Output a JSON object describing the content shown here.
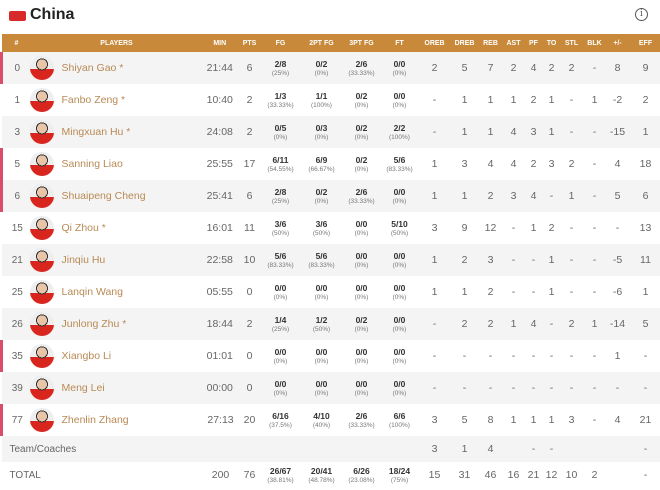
{
  "header": {
    "team": "China",
    "flag_icon": "china-flag-icon",
    "info_icon": "info-icon"
  },
  "colors": {
    "header_bg": "#c8893a",
    "name": "#b98a55",
    "starter_marker": "#d94d6a"
  },
  "columns": [
    "#",
    "PLAYERS",
    "MIN",
    "PTS",
    "FG",
    "2PT FG",
    "3PT FG",
    "FT",
    "OREB",
    "DREB",
    "REB",
    "AST",
    "PF",
    "TO",
    "STL",
    "BLK",
    "+/-",
    "EFF"
  ],
  "players": [
    {
      "no": "0",
      "name": "Shiyan Gao *",
      "hl": true,
      "min": "21:44",
      "pts": "6",
      "fg": [
        "2/8",
        "(25%)"
      ],
      "p2": [
        "0/2",
        "(0%)"
      ],
      "p3": [
        "2/6",
        "(33.33%)"
      ],
      "ft": [
        "0/0",
        "(0%)"
      ],
      "s": [
        "2",
        "5",
        "7",
        "2",
        "4",
        "2",
        "2",
        "-",
        "8",
        "9"
      ]
    },
    {
      "no": "1",
      "name": "Fanbo Zeng *",
      "hl": false,
      "min": "10:40",
      "pts": "2",
      "fg": [
        "1/3",
        "(33.33%)"
      ],
      "p2": [
        "1/1",
        "(100%)"
      ],
      "p3": [
        "0/2",
        "(0%)"
      ],
      "ft": [
        "0/0",
        "(0%)"
      ],
      "s": [
        "-",
        "1",
        "1",
        "1",
        "2",
        "1",
        "-",
        "1",
        "-2",
        "2"
      ]
    },
    {
      "no": "3",
      "name": "Mingxuan Hu *",
      "hl": false,
      "min": "24:08",
      "pts": "2",
      "fg": [
        "0/5",
        "(0%)"
      ],
      "p2": [
        "0/3",
        "(0%)"
      ],
      "p3": [
        "0/2",
        "(0%)"
      ],
      "ft": [
        "2/2",
        "(100%)"
      ],
      "s": [
        "-",
        "1",
        "1",
        "4",
        "3",
        "1",
        "-",
        "-",
        "-15",
        "1"
      ]
    },
    {
      "no": "5",
      "name": "Sanning Liao",
      "hl": true,
      "min": "25:55",
      "pts": "17",
      "fg": [
        "6/11",
        "(54.55%)"
      ],
      "p2": [
        "6/9",
        "(66.67%)"
      ],
      "p3": [
        "0/2",
        "(0%)"
      ],
      "ft": [
        "5/6",
        "(83.33%)"
      ],
      "s": [
        "1",
        "3",
        "4",
        "4",
        "2",
        "3",
        "2",
        "-",
        "4",
        "18"
      ]
    },
    {
      "no": "6",
      "name": "Shuaipeng Cheng",
      "hl": true,
      "min": "25:41",
      "pts": "6",
      "fg": [
        "2/8",
        "(25%)"
      ],
      "p2": [
        "0/2",
        "(0%)"
      ],
      "p3": [
        "2/6",
        "(33.33%)"
      ],
      "ft": [
        "0/0",
        "(0%)"
      ],
      "s": [
        "1",
        "1",
        "2",
        "3",
        "4",
        "-",
        "1",
        "-",
        "5",
        "6"
      ]
    },
    {
      "no": "15",
      "name": "Qi Zhou *",
      "hl": false,
      "min": "16:01",
      "pts": "11",
      "fg": [
        "3/6",
        "(50%)"
      ],
      "p2": [
        "3/6",
        "(50%)"
      ],
      "p3": [
        "0/0",
        "(0%)"
      ],
      "ft": [
        "5/10",
        "(50%)"
      ],
      "s": [
        "3",
        "9",
        "12",
        "-",
        "1",
        "2",
        "-",
        "-",
        "-",
        "13"
      ]
    },
    {
      "no": "21",
      "name": "Jinqiu Hu",
      "hl": false,
      "min": "22:58",
      "pts": "10",
      "fg": [
        "5/6",
        "(83.33%)"
      ],
      "p2": [
        "5/6",
        "(83.33%)"
      ],
      "p3": [
        "0/0",
        "(0%)"
      ],
      "ft": [
        "0/0",
        "(0%)"
      ],
      "s": [
        "1",
        "2",
        "3",
        "-",
        "-",
        "1",
        "-",
        "-",
        "-5",
        "11"
      ]
    },
    {
      "no": "25",
      "name": "Lanqin Wang",
      "hl": false,
      "min": "05:55",
      "pts": "0",
      "fg": [
        "0/0",
        "(0%)"
      ],
      "p2": [
        "0/0",
        "(0%)"
      ],
      "p3": [
        "0/0",
        "(0%)"
      ],
      "ft": [
        "0/0",
        "(0%)"
      ],
      "s": [
        "1",
        "1",
        "2",
        "-",
        "-",
        "1",
        "-",
        "-",
        "-6",
        "1"
      ]
    },
    {
      "no": "26",
      "name": "Junlong Zhu *",
      "hl": false,
      "min": "18:44",
      "pts": "2",
      "fg": [
        "1/4",
        "(25%)"
      ],
      "p2": [
        "1/2",
        "(50%)"
      ],
      "p3": [
        "0/2",
        "(0%)"
      ],
      "ft": [
        "0/0",
        "(0%)"
      ],
      "s": [
        "-",
        "2",
        "2",
        "1",
        "4",
        "-",
        "2",
        "1",
        "-14",
        "5"
      ]
    },
    {
      "no": "35",
      "name": "Xiangbo Li",
      "hl": true,
      "min": "01:01",
      "pts": "0",
      "fg": [
        "0/0",
        "(0%)"
      ],
      "p2": [
        "0/0",
        "(0%)"
      ],
      "p3": [
        "0/0",
        "(0%)"
      ],
      "ft": [
        "0/0",
        "(0%)"
      ],
      "s": [
        "-",
        "-",
        "-",
        "-",
        "-",
        "-",
        "-",
        "-",
        "1",
        "-"
      ]
    },
    {
      "no": "39",
      "name": "Meng Lei",
      "hl": false,
      "min": "00:00",
      "pts": "0",
      "fg": [
        "0/0",
        "(0%)"
      ],
      "p2": [
        "0/0",
        "(0%)"
      ],
      "p3": [
        "0/0",
        "(0%)"
      ],
      "ft": [
        "0/0",
        "(0%)"
      ],
      "s": [
        "-",
        "-",
        "-",
        "-",
        "-",
        "-",
        "-",
        "-",
        "-",
        "-"
      ]
    },
    {
      "no": "77",
      "name": "Zhenlin Zhang",
      "hl": true,
      "min": "27:13",
      "pts": "20",
      "fg": [
        "6/16",
        "(37.5%)"
      ],
      "p2": [
        "4/10",
        "(40%)"
      ],
      "p3": [
        "2/6",
        "(33.33%)"
      ],
      "ft": [
        "6/6",
        "(100%)"
      ],
      "s": [
        "3",
        "5",
        "8",
        "1",
        "1",
        "1",
        "3",
        "-",
        "4",
        "21"
      ]
    }
  ],
  "team_coaches": {
    "label": "Team/Coaches",
    "s": [
      "3",
      "1",
      "4",
      "",
      "-",
      "-",
      "",
      "",
      "",
      "-"
    ]
  },
  "total": {
    "label": "TOTAL",
    "min": "200",
    "pts": "76",
    "fg": [
      "26/67",
      "(38.81%)"
    ],
    "p2": [
      "20/41",
      "(48.78%)"
    ],
    "p3": [
      "6/26",
      "(23.08%)"
    ],
    "ft": [
      "18/24",
      "(75%)"
    ],
    "s": [
      "15",
      "31",
      "46",
      "16",
      "21",
      "12",
      "10",
      "2",
      "",
      "-"
    ]
  }
}
